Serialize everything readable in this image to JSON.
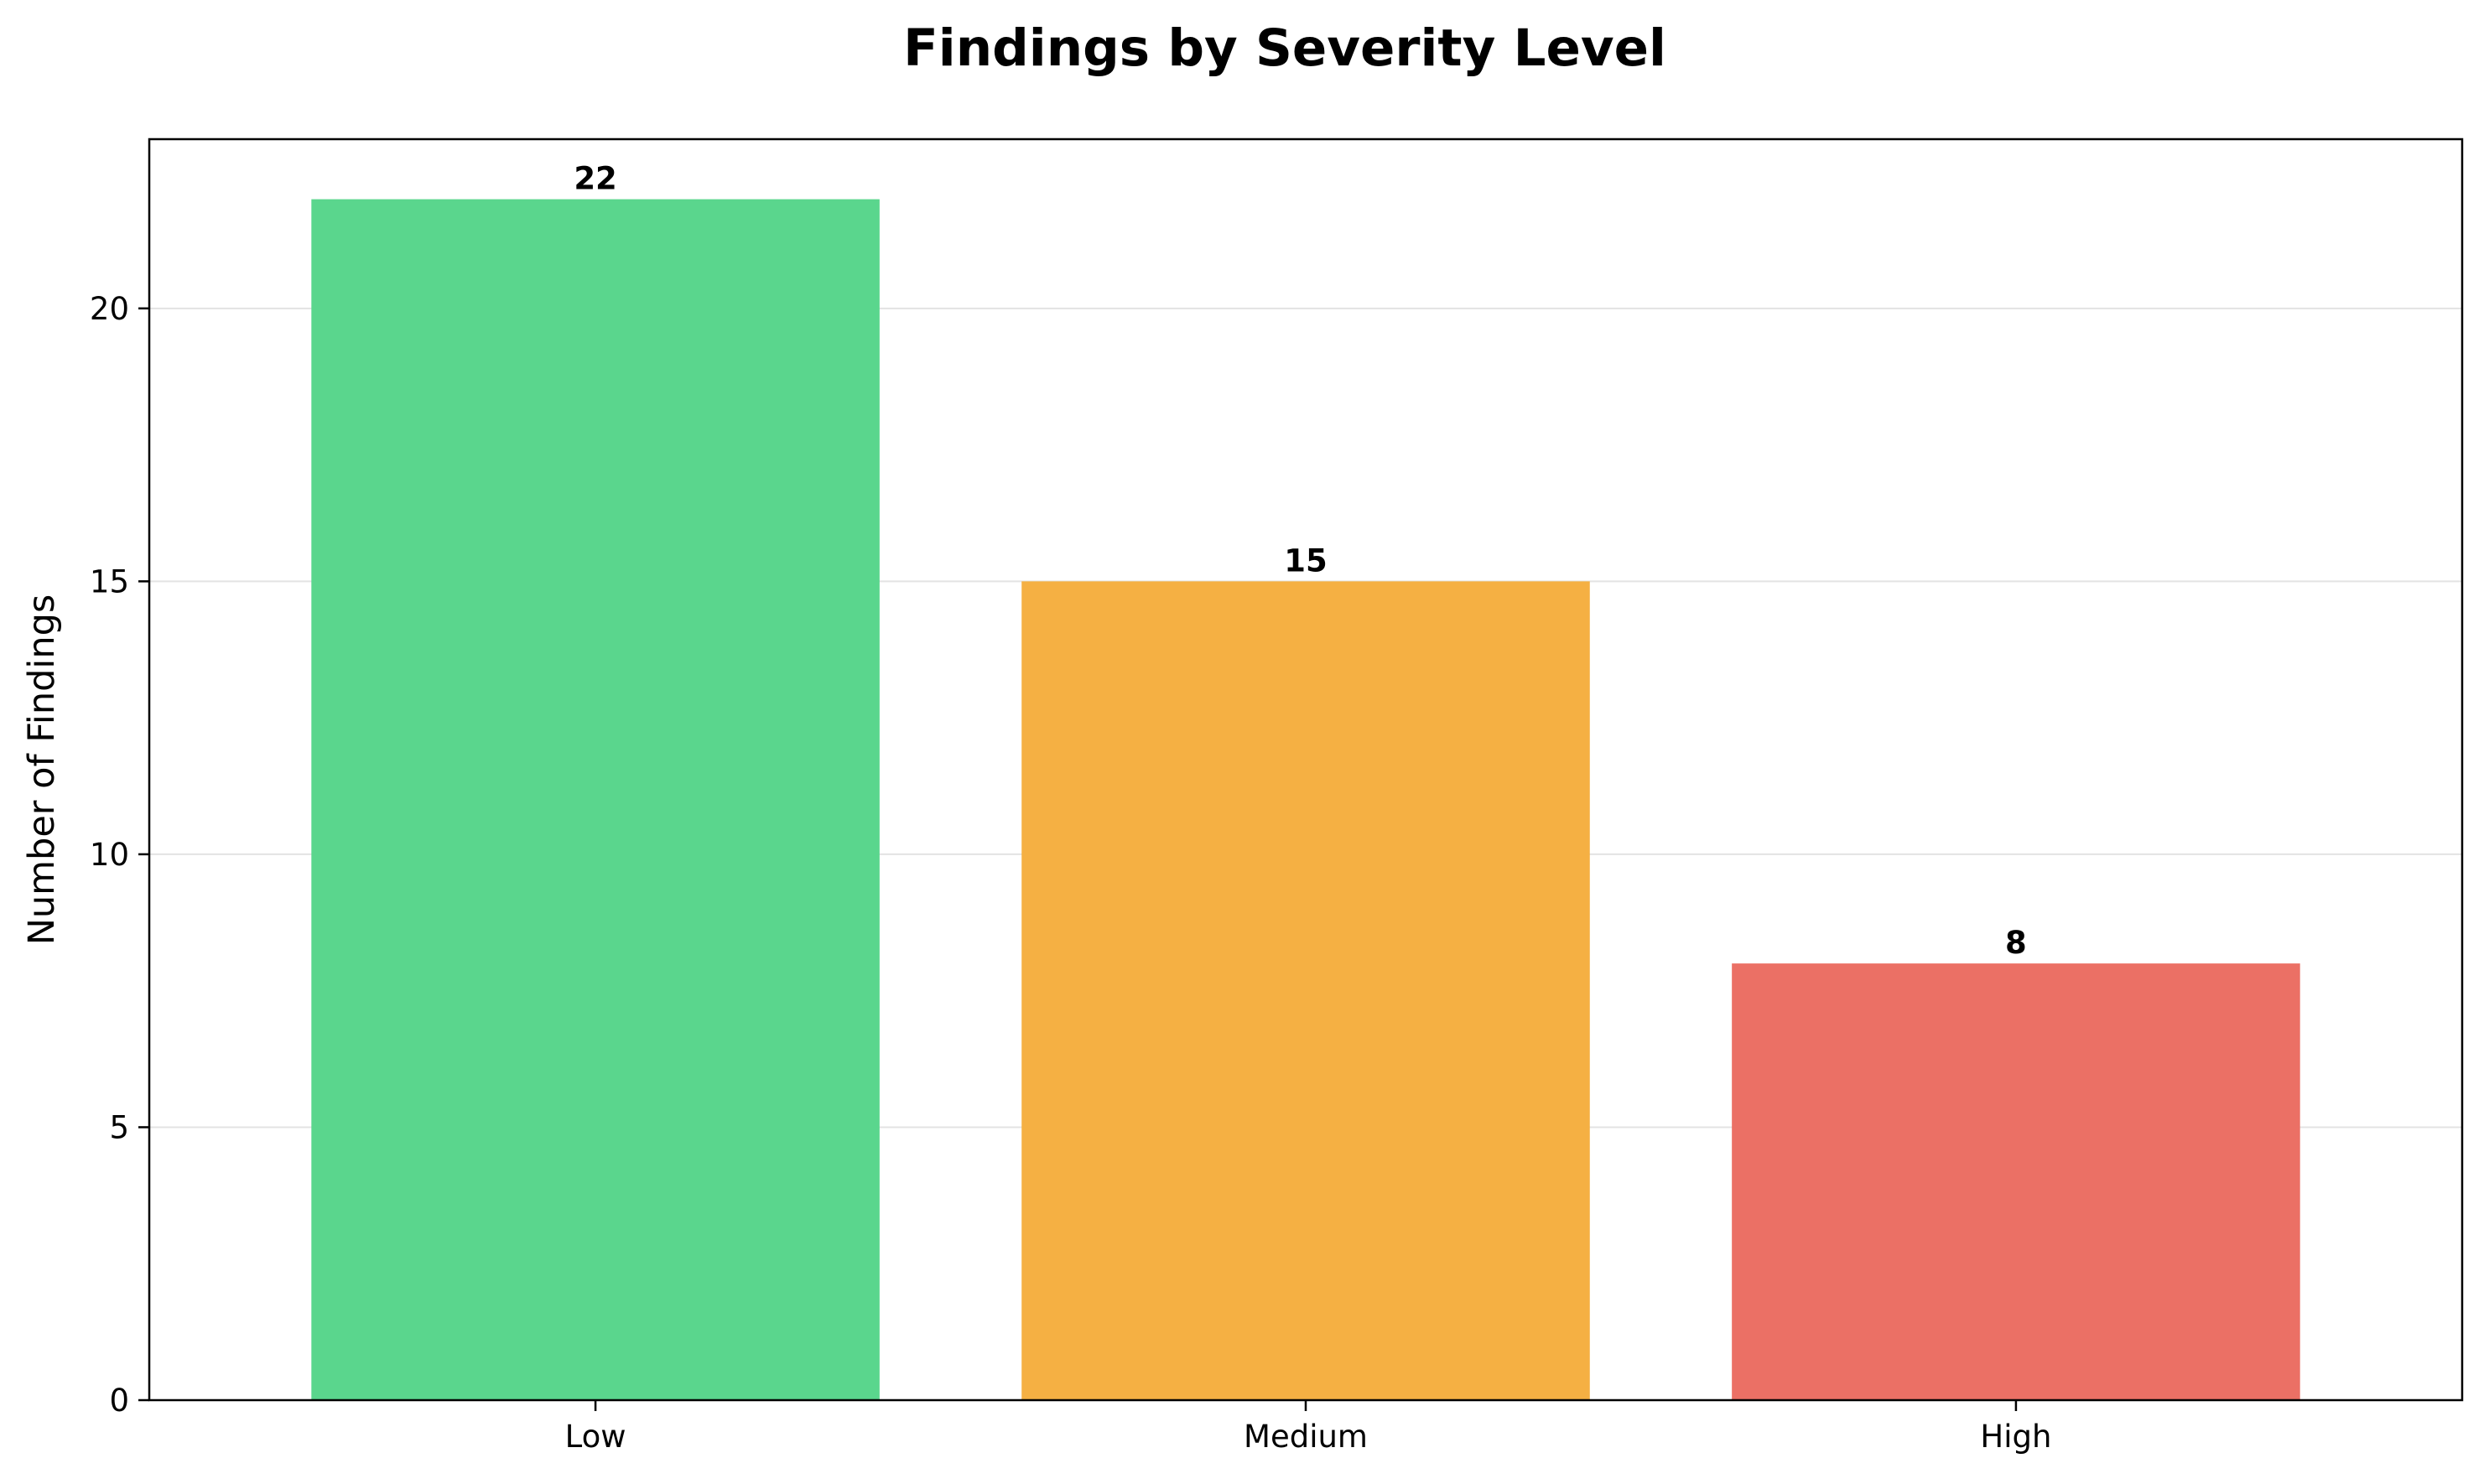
{
  "chart_data": {
    "type": "bar",
    "title": "Findings by Severity Level",
    "xlabel": "",
    "ylabel": "Number of Findings",
    "categories": [
      "Low",
      "Medium",
      "High"
    ],
    "values": [
      22,
      15,
      8
    ],
    "value_labels": [
      "22",
      "15",
      "8"
    ],
    "colors": [
      "#5AD68D",
      "#F5B043",
      "#EB7065"
    ],
    "ylim": [
      0,
      23.1
    ],
    "yticks": [
      0,
      5,
      10,
      15,
      20
    ],
    "grid": "y",
    "legend": "none"
  }
}
